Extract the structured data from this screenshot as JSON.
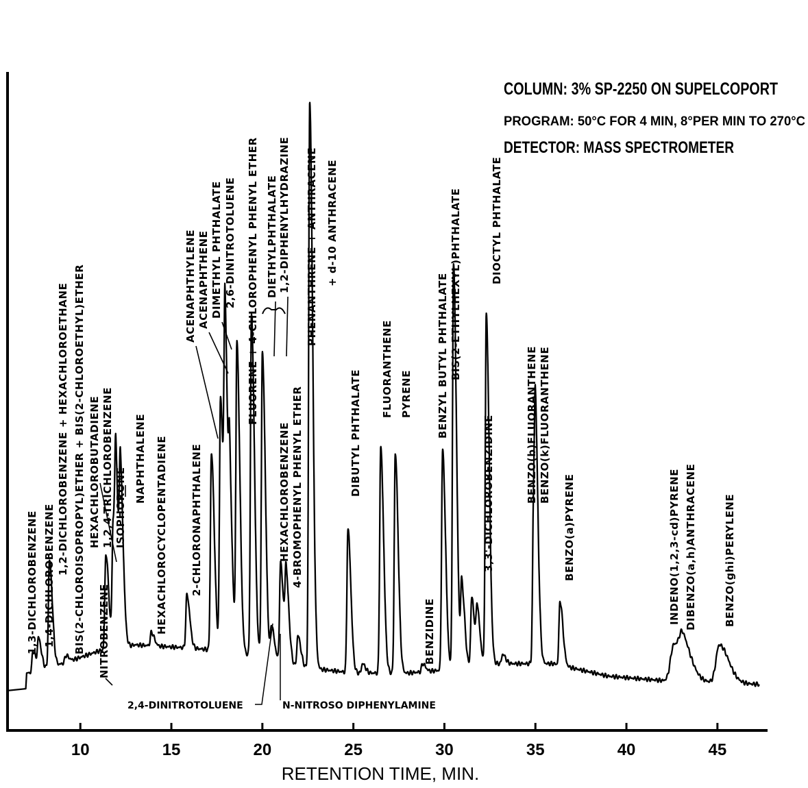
{
  "chart_data": {
    "type": "line",
    "xlabel": "RETENTION TIME, MIN.",
    "ylabel": "",
    "xlim": [
      6,
      47.5
    ],
    "ylim": [
      0,
      100
    ],
    "grid": false,
    "x_ticks": [
      "10",
      "15",
      "20",
      "25",
      "30",
      "35",
      "40",
      "45"
    ],
    "conditions": [
      "COLUMN: 3% SP-2250 ON SUPELCOPORT",
      "PROGRAM: 50°C  FOR 4 MIN, 8°PER MIN TO 270°C",
      "DETECTOR: MASS SPECTROMETER"
    ],
    "baseline": [
      [
        6.0,
        2.2
      ],
      [
        7.0,
        2.5
      ],
      [
        7.2,
        5.0
      ],
      [
        9.0,
        6.5
      ],
      [
        11.0,
        8.5
      ],
      [
        13.0,
        9.5
      ],
      [
        16.0,
        9.0
      ],
      [
        18.0,
        8.5
      ],
      [
        20.0,
        7.5
      ],
      [
        22.0,
        6.0
      ],
      [
        25.0,
        5.0
      ],
      [
        28.0,
        5.0
      ],
      [
        30.0,
        5.5
      ],
      [
        33.0,
        6.5
      ],
      [
        36.0,
        6.5
      ],
      [
        39.0,
        4.5
      ],
      [
        42.0,
        3.8
      ],
      [
        45.0,
        3.5
      ],
      [
        47.3,
        3.2
      ]
    ],
    "peaks": [
      {
        "t": 7.4,
        "y": 8.5,
        "label": "1,3-DICHLOROBENZENE"
      },
      {
        "t": 7.7,
        "y": 10.2,
        "label": "1,4-DICHLOROBENZENE"
      },
      {
        "t": 8.3,
        "y": 23.0,
        "label": "1,2-DICHLOROBENZENE + HEXACHLOROETHANE"
      },
      {
        "t": 9.2,
        "y": 7.8,
        "label": "BIS(2-CHLOROISOPROPYL)ETHER + BIS(2-CHLOROETHYL)ETHER"
      },
      {
        "t": 11.0,
        "y": 8.5,
        "label": "NITROBENZENE"
      },
      {
        "t": 11.4,
        "y": 24.0,
        "label": "HEXACHLOROBUTADIENE"
      },
      {
        "t": 11.8,
        "y": 28.5,
        "label": "1,2,4-TRICHLOROBENZENE"
      },
      {
        "t": 11.95,
        "y": 30.0,
        "label": "ISOPHORONE"
      },
      {
        "t": 12.2,
        "y": 34.0,
        "label": "NAPHTHALENE"
      },
      {
        "t": 13.9,
        "y": 11.5,
        "label": "HEXACHLOROCYCLOPENTADIENE"
      },
      {
        "t": 15.85,
        "y": 17.5,
        "label": "2-CHLORONAPHTHALENE"
      },
      {
        "t": 17.2,
        "y": 40.0,
        "label": "ACENAPHTHYLENE"
      },
      {
        "t": 17.7,
        "y": 49.0,
        "label": "ACENAPHTHENE"
      },
      {
        "t": 17.95,
        "y": 55.0,
        "label": "DIMETHYL PHTHALATE"
      },
      {
        "t": 18.2,
        "y": 30.0,
        "label": "2,6-DINITROTOLUENE"
      },
      {
        "t": 18.6,
        "y": 57.0,
        "label": "FLUORENE + 4-CHLOROPHENYL PHENYL ETHER"
      },
      {
        "t": 19.4,
        "y": 62.0,
        "label": "DIETHYLPHTHALATE"
      },
      {
        "t": 20.0,
        "y": 56.0,
        "label": "1,2-DIPHENYLHYDRAZINE"
      },
      {
        "t": 20.5,
        "y": 12.5,
        "label": "N-NITROSO DIPHENYLAMINE"
      },
      {
        "t": 21.0,
        "y": 22.5,
        "label": "HEXACHLOROBENZENE"
      },
      {
        "t": 21.3,
        "y": 20.0,
        "label": "4-BROMOPHENYL PHENYL ETHER"
      },
      {
        "t": 21.95,
        "y": 11.0,
        "label": "PHENANTHRENE + ANTHRACENE"
      },
      {
        "t": 22.6,
        "y": 96.0,
        "label": "+ d-10 ANTHRACENE"
      },
      {
        "t": 24.7,
        "y": 28.0,
        "label": "DIBUTYL PHTHALATE"
      },
      {
        "t": 25.5,
        "y": 6.5,
        "label": ""
      },
      {
        "t": 26.5,
        "y": 41.0,
        "label": "FLUORANTHENE"
      },
      {
        "t": 27.3,
        "y": 40.0,
        "label": "PYRENE"
      },
      {
        "t": 28.8,
        "y": 6.5,
        "label": "BENZIDINE"
      },
      {
        "t": 29.9,
        "y": 40.5,
        "label": "BENZYL BUTYL PHTHALATE"
      },
      {
        "t": 30.5,
        "y": 70.0,
        "label": "BIS(2-ETHYLHEXYL)PHTHALATE"
      },
      {
        "t": 30.95,
        "y": 19.0,
        "label": ""
      },
      {
        "t": 31.5,
        "y": 17.0,
        "label": "3,3'-DICHLOROBENZIDINE"
      },
      {
        "t": 31.8,
        "y": 14.5,
        "label": ""
      },
      {
        "t": 32.3,
        "y": 62.0,
        "label": "DIOCTYL PHTHALATE"
      },
      {
        "t": 33.2,
        "y": 8.0,
        "label": ""
      },
      {
        "t": 34.9,
        "y": 31.0,
        "label": "BENZO(b)FLUORANTHENE"
      },
      {
        "t": 35.0,
        "y": 30.5,
        "label": "BENZO(k)FLUORANTHENE"
      },
      {
        "t": 36.35,
        "y": 16.5,
        "label": "BENZO(a)PYRENE"
      },
      {
        "t": 42.6,
        "y": 9.5,
        "label": "INDENO(1,2,3-cd)PYRENE"
      },
      {
        "t": 43.1,
        "y": 8.0,
        "label": "DIBENZO(a,h)ANTHRACENE"
      },
      {
        "t": 45.1,
        "y": 9.5,
        "label": "BENZO(ghi)PERYLENE"
      }
    ]
  },
  "annotations": {
    "dinitrotoluene_24": "2,4-DINITROTOLUENE",
    "nitroso": "N-NITROSO DIPHENYLAMINE"
  }
}
